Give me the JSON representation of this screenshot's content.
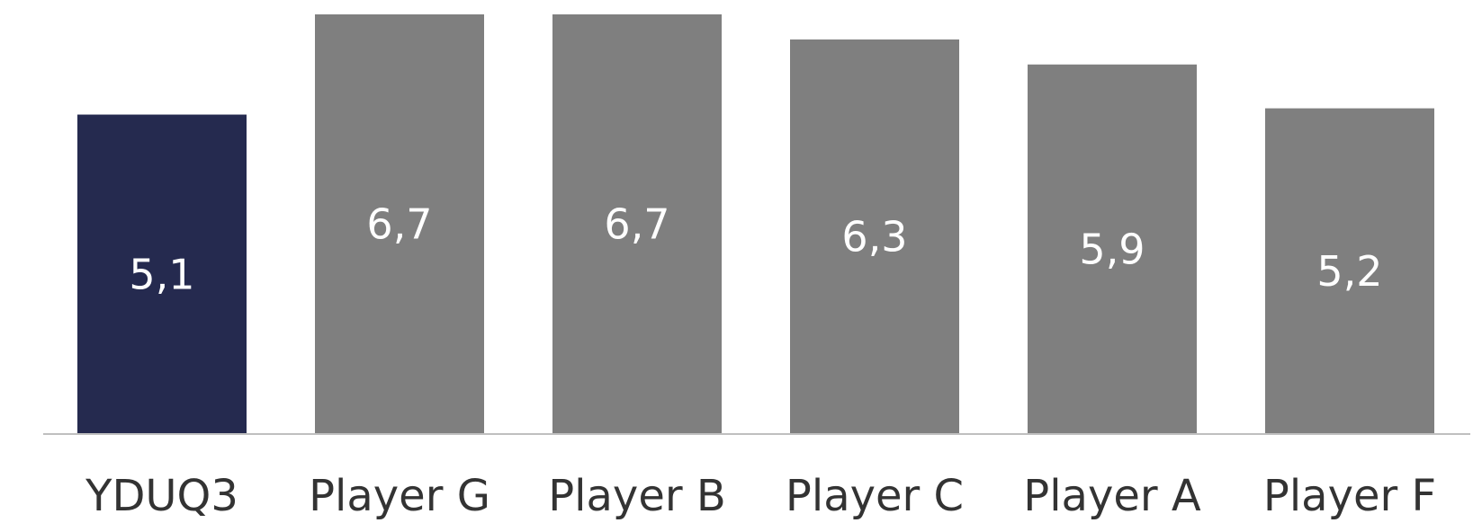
{
  "chart_data": {
    "type": "bar",
    "categories": [
      "YDUQ3",
      "Player G",
      "Player B",
      "Player C",
      "Player A",
      "Player F"
    ],
    "values": [
      5.1,
      6.7,
      6.7,
      6.3,
      5.9,
      5.2
    ],
    "value_labels": [
      "5,1",
      "6,7",
      "6,7",
      "6,3",
      "5,9",
      "5,2"
    ],
    "ylim": [
      0,
      6.7
    ],
    "colors": [
      "#252a4f",
      "#7f7f7f",
      "#7f7f7f",
      "#7f7f7f",
      "#7f7f7f",
      "#7f7f7f"
    ],
    "axis_color": "#bfbfbf",
    "grid": false,
    "legend": "none"
  }
}
